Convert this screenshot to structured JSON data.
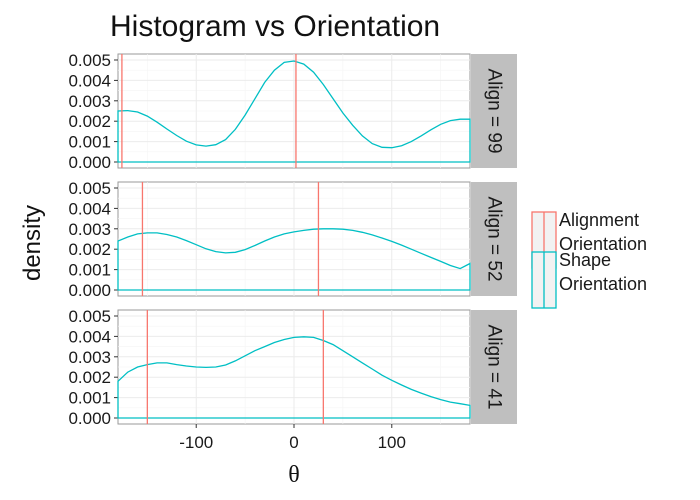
{
  "chart_data": {
    "type": "line",
    "title": "Histogram vs Orientation",
    "xlabel": "θ",
    "ylabel": "density",
    "xlim": [
      -180,
      180
    ],
    "ylim": [
      0,
      0.005
    ],
    "x_ticks": [
      -100,
      0,
      100
    ],
    "x_tick_labels": [
      "-100",
      "0",
      "100"
    ],
    "y_ticks": [
      0,
      0.001,
      0.002,
      0.003,
      0.004,
      0.005
    ],
    "y_tick_labels": [
      "0.000",
      "0.001",
      "0.002",
      "0.003",
      "0.004",
      "0.005"
    ],
    "grid": true,
    "legend": {
      "placement": "right",
      "entries": [
        {
          "label_line1": "Alignment",
          "label_line2": "Orientation",
          "color": "#F8766D"
        },
        {
          "label_line1": "Shape",
          "label_line2": "Orientation",
          "color": "#00BFC4"
        }
      ]
    },
    "panels": [
      {
        "strip": "Align = 99",
        "alignment_orientation": [
          -176,
          2
        ],
        "shape_density": {
          "x": [
            -180,
            -170,
            -160,
            -150,
            -140,
            -130,
            -120,
            -110,
            -100,
            -90,
            -80,
            -70,
            -60,
            -50,
            -40,
            -30,
            -20,
            -10,
            0,
            10,
            20,
            30,
            40,
            50,
            60,
            70,
            80,
            90,
            100,
            110,
            120,
            130,
            140,
            150,
            160,
            170,
            180
          ],
          "y": [
            0.0025,
            0.00252,
            0.00245,
            0.00225,
            0.00195,
            0.00162,
            0.0013,
            0.00102,
            0.00084,
            0.00078,
            0.00085,
            0.0011,
            0.0016,
            0.0023,
            0.0031,
            0.0039,
            0.0045,
            0.00488,
            0.00495,
            0.0048,
            0.0044,
            0.0038,
            0.0031,
            0.0024,
            0.0018,
            0.00128,
            0.0009,
            0.00072,
            0.0007,
            0.0008,
            0.001,
            0.00128,
            0.00158,
            0.00185,
            0.00203,
            0.0021,
            0.0021
          ]
        }
      },
      {
        "strip": "Align = 52",
        "alignment_orientation": [
          -155,
          25
        ],
        "shape_density": {
          "x": [
            -180,
            -170,
            -160,
            -150,
            -140,
            -130,
            -120,
            -110,
            -100,
            -90,
            -80,
            -70,
            -60,
            -50,
            -40,
            -30,
            -20,
            -10,
            0,
            10,
            20,
            30,
            40,
            50,
            60,
            70,
            80,
            90,
            100,
            110,
            120,
            130,
            140,
            150,
            160,
            170,
            180
          ],
          "y": [
            0.0024,
            0.0026,
            0.00275,
            0.0028,
            0.0028,
            0.00272,
            0.0026,
            0.00242,
            0.00222,
            0.00202,
            0.00188,
            0.00182,
            0.00185,
            0.00198,
            0.00218,
            0.0024,
            0.0026,
            0.00275,
            0.00285,
            0.00292,
            0.00298,
            0.003,
            0.003,
            0.00298,
            0.00292,
            0.00283,
            0.0027,
            0.00255,
            0.00238,
            0.0022,
            0.002,
            0.0018,
            0.0016,
            0.0014,
            0.0012,
            0.00105,
            0.0013
          ]
        }
      },
      {
        "strip": "Align = 41",
        "alignment_orientation": [
          -150,
          30
        ],
        "shape_density": {
          "x": [
            -180,
            -170,
            -160,
            -150,
            -140,
            -130,
            -120,
            -110,
            -100,
            -90,
            -80,
            -70,
            -60,
            -50,
            -40,
            -30,
            -20,
            -10,
            0,
            10,
            20,
            30,
            40,
            50,
            60,
            70,
            80,
            90,
            100,
            110,
            120,
            130,
            140,
            150,
            160,
            170,
            180
          ],
          "y": [
            0.0018,
            0.00225,
            0.0025,
            0.00262,
            0.0027,
            0.0027,
            0.00262,
            0.00255,
            0.0025,
            0.00248,
            0.0025,
            0.0026,
            0.0028,
            0.00305,
            0.0033,
            0.0035,
            0.0037,
            0.00385,
            0.00395,
            0.00398,
            0.00395,
            0.0038,
            0.0036,
            0.0033,
            0.003,
            0.0027,
            0.0024,
            0.0021,
            0.00185,
            0.00162,
            0.0014,
            0.00122,
            0.00105,
            0.0009,
            0.00078,
            0.0007,
            0.00062
          ]
        }
      }
    ]
  }
}
